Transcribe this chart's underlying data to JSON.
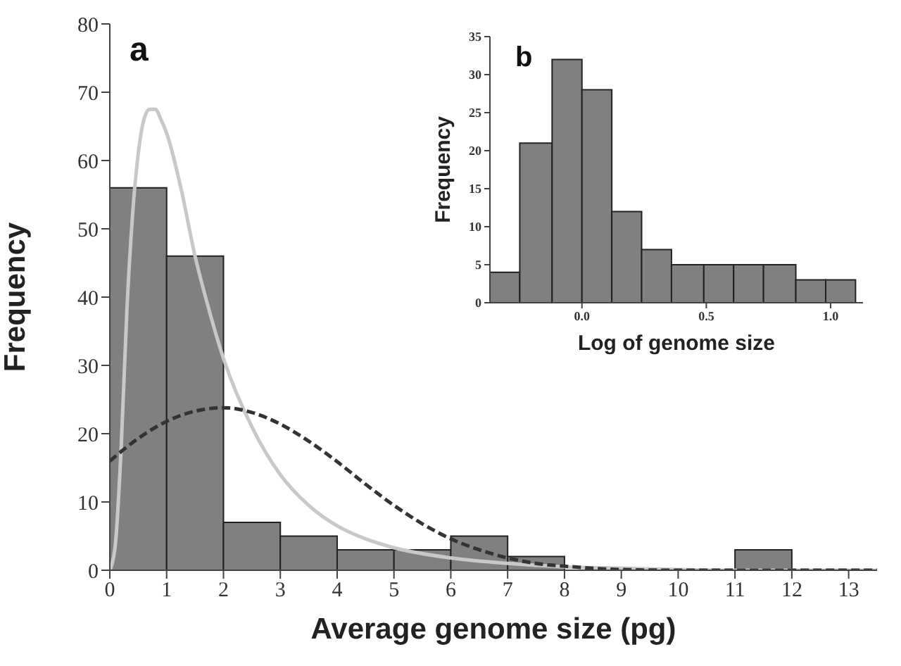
{
  "chart_data": [
    {
      "type": "histogram",
      "title": "a",
      "xlabel": "Average genome size (pg)",
      "ylabel": "Frequency",
      "bins": [
        0,
        1,
        2,
        3,
        4,
        5,
        6,
        7,
        8,
        9,
        10,
        11,
        12
      ],
      "values": [
        56,
        46,
        7,
        5,
        3,
        3,
        5,
        2,
        0,
        0,
        0,
        3
      ],
      "color": "#808080",
      "series": [
        {
          "type": "line",
          "color": "#c8c8c8",
          "line_style": "solid",
          "x": [
            0,
            0.1,
            0.2,
            0.3,
            0.4,
            0.5,
            0.6,
            0.7,
            0.8,
            0.9,
            1,
            1.25,
            1.5,
            1.75,
            2,
            2.5,
            3,
            3.5,
            4,
            4.5,
            5,
            6,
            7,
            8,
            9,
            10,
            11,
            12,
            13,
            13.5
          ],
          "values": [
            0,
            4,
            18,
            38,
            52,
            61,
            66,
            67.5,
            67.5,
            66,
            64,
            56,
            46,
            38,
            31,
            21,
            14,
            9.5,
            6.5,
            4.6,
            3.3,
            1.8,
            1,
            0.5,
            0.3,
            0.1,
            0,
            0,
            0,
            0
          ]
        },
        {
          "type": "line",
          "color": "#333333",
          "line_style": "dashed",
          "x": [
            0,
            0.5,
            1,
            1.5,
            2,
            2.5,
            3,
            3.5,
            4,
            4.5,
            5,
            5.5,
            6,
            6.5,
            7,
            7.5,
            8,
            9,
            10,
            11,
            12,
            13,
            13.5
          ],
          "values": [
            16,
            19.3,
            21.8,
            23.3,
            23.8,
            23.1,
            21.4,
            18.9,
            15.9,
            12.6,
            9.5,
            6.8,
            4.6,
            3,
            1.8,
            1,
            0.6,
            0.1,
            0,
            0,
            0,
            0,
            0
          ]
        }
      ],
      "xlim": [
        0,
        13.5
      ],
      "xticks": [
        0,
        1,
        2,
        3,
        4,
        5,
        6,
        7,
        8,
        9,
        10,
        11,
        12,
        13
      ],
      "ylim": [
        0,
        80
      ],
      "yticks": [
        0,
        10,
        20,
        30,
        40,
        50,
        60,
        70,
        80
      ]
    },
    {
      "type": "histogram",
      "title": "b",
      "xlabel": "Log of genome size",
      "ylabel": "Frequency",
      "bins": [
        -0.37,
        -0.25,
        -0.12,
        0,
        0.12,
        0.24,
        0.36,
        0.49,
        0.61,
        0.73,
        0.86,
        0.98,
        1.1
      ],
      "values": [
        4,
        21,
        32,
        28,
        12,
        7,
        5,
        5,
        5,
        5,
        3,
        3
      ],
      "color": "#808080",
      "xlim": [
        -0.37,
        1.13
      ],
      "xticks": [
        {
          "value": 0,
          "label": "0.0"
        },
        {
          "value": 0.5,
          "label": "0.5"
        },
        {
          "value": 1,
          "label": "1.0"
        }
      ],
      "ylim": [
        0,
        35
      ],
      "yticks": [
        0,
        5,
        10,
        15,
        20,
        25,
        30,
        35
      ]
    }
  ]
}
